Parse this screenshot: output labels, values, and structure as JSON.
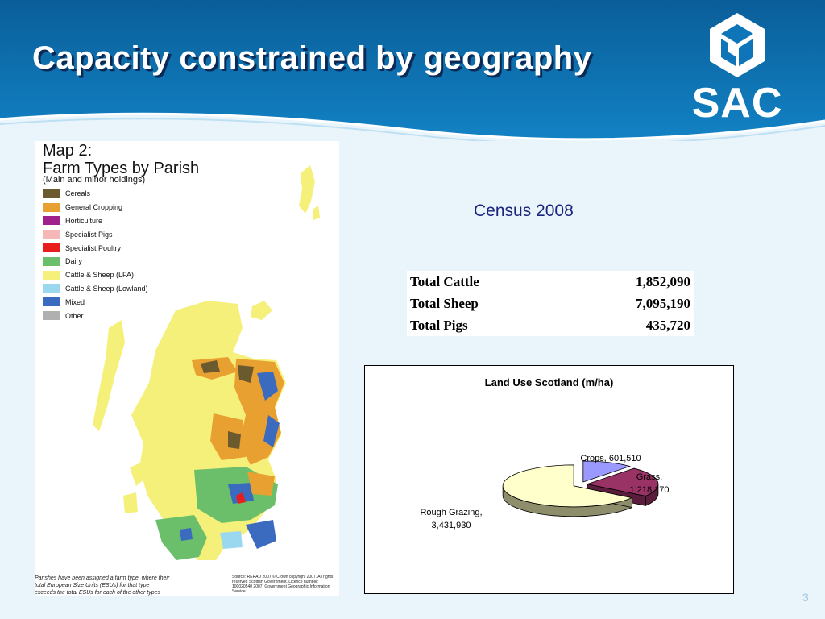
{
  "slide": {
    "title": "Capacity constrained by geography",
    "logo_text": "SAC",
    "page_number": "3"
  },
  "map": {
    "title_line1": "Map 2:",
    "title_line2": "Farm Types by Parish",
    "subtitle": "(Main and minor holdings)",
    "legend": [
      {
        "label": "Cereals",
        "color": "#6b5a2e"
      },
      {
        "label": "General Cropping",
        "color": "#e8a030"
      },
      {
        "label": "Horticulture",
        "color": "#a0208c"
      },
      {
        "label": "Specialist Pigs",
        "color": "#f5b7b7"
      },
      {
        "label": "Specialist Poultry",
        "color": "#e81e1e"
      },
      {
        "label": "Dairy",
        "color": "#6bbf6b"
      },
      {
        "label": "Cattle & Sheep (LFA)",
        "color": "#f5f07a"
      },
      {
        "label": "Cattle & Sheep (Lowland)",
        "color": "#9ad8f0"
      },
      {
        "label": "Mixed",
        "color": "#3a6bbf"
      },
      {
        "label": "Other",
        "color": "#b0b0b0"
      }
    ],
    "footnote": "Parishes have been assigned a farm type, where their total European Size Units (ESUs) for that type exceeds the total ESUs for each of the other types",
    "source": "Source: RERAD 2007 © Crown copyright 2007. All rights reserved Scottish Government. Licence number: 100020540 2007. Government Geographic Information Service"
  },
  "census": {
    "heading": "Census 2008",
    "rows": [
      {
        "label": "Total Cattle",
        "value": "1,852,090"
      },
      {
        "label": "Total Sheep",
        "value": "7,095,190"
      },
      {
        "label": "Total Pigs",
        "value": "435,720"
      }
    ]
  },
  "chart_data": {
    "type": "pie",
    "title": "Land Use Scotland (m/ha)",
    "slices": [
      {
        "name": "Crops",
        "value": 601510,
        "label_line1": "Crops, 601,510",
        "label_line2": "",
        "color": "#9999ff",
        "side": "#5a5aaa"
      },
      {
        "name": "Grass",
        "value": 1218170,
        "label_line1": "Grass,",
        "label_line2": "1,218,170",
        "color": "#993366",
        "side": "#5a1d3c"
      },
      {
        "name": "Rough Grazing",
        "value": 3431930,
        "label_line1": "Rough Grazing,",
        "label_line2": "3,431,930",
        "color": "#ffffcc",
        "side": "#8e8e6c"
      }
    ],
    "style": "3d-exploded"
  },
  "colors": {
    "header_blue": "#0d75b8",
    "header_dark": "#0a5e99",
    "background": "#eaf5fb",
    "title_shadow": "#0a2a55",
    "census_text": "#1a237e"
  }
}
